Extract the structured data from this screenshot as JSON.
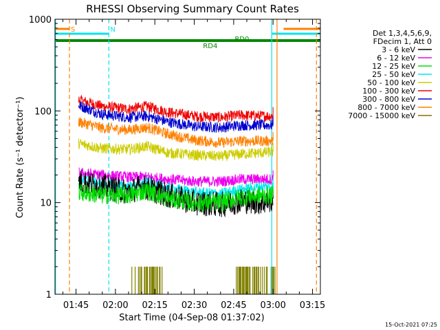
{
  "chart_data": {
    "type": "line",
    "title": "RHESSI Observing Summary Count Rates",
    "xlabel": "Start Time (04-Sep-08 01:37:02)",
    "ylabel": "Count Rate (s⁻¹ detector⁻¹)",
    "y_scale": "log",
    "ylim": [
      1,
      1000
    ],
    "xlim_minutes": [
      97,
      198
    ],
    "x_tick_labels": [
      "01:45",
      "02:00",
      "02:15",
      "02:30",
      "02:45",
      "03:00",
      "03:15"
    ],
    "x_tick_minutes": [
      105,
      120,
      135,
      150,
      165,
      180,
      195
    ],
    "y_tick_labels": [
      "1",
      "10",
      "100",
      "1000"
    ],
    "legend_header": [
      "Det 1,3,4,5,6,9,",
      "FDecim 1, Att 0"
    ],
    "legend_position": "right",
    "series": [
      {
        "name": "3 - 6 keV",
        "color": "#000000",
        "x": [
          106,
          115,
          125,
          130,
          140,
          150,
          160,
          168,
          176,
          180
        ],
        "y": [
          17,
          15,
          13,
          15,
          12,
          10,
          9.5,
          10.5,
          10,
          11
        ]
      },
      {
        "name": "6 - 12 keV",
        "color": "#ee00ee",
        "x": [
          106,
          115,
          125,
          132,
          140,
          150,
          160,
          168,
          176,
          180
        ],
        "y": [
          21,
          20,
          19,
          19,
          18,
          17,
          17,
          18,
          18,
          18
        ]
      },
      {
        "name": "12 - 25 keV",
        "color": "#00dd00",
        "x": [
          106,
          115,
          125,
          132,
          140,
          150,
          160,
          168,
          176,
          180
        ],
        "y": [
          13,
          12,
          12,
          13.5,
          11,
          10,
          10,
          11.5,
          12,
          12
        ]
      },
      {
        "name": "25 - 50 keV",
        "color": "#00e5ee",
        "x": [
          106,
          115,
          125,
          132,
          140,
          150,
          160,
          168,
          176,
          180
        ],
        "y": [
          18,
          16,
          15,
          16.5,
          14.5,
          13,
          12.5,
          14,
          15,
          15
        ]
      },
      {
        "name": "50 - 100 keV",
        "color": "#cccc00",
        "x": [
          106,
          115,
          125,
          132,
          140,
          150,
          160,
          168,
          176,
          180
        ],
        "y": [
          44,
          39,
          38,
          41,
          35,
          33,
          32,
          34,
          35,
          36
        ]
      },
      {
        "name": "100 - 300 keV",
        "color": "#ee0000",
        "x": [
          106,
          115,
          125,
          132,
          140,
          150,
          160,
          168,
          176,
          180
        ],
        "y": [
          132,
          112,
          105,
          112,
          97,
          88,
          85,
          90,
          88,
          88
        ]
      },
      {
        "name": "300 - 800 keV",
        "color": "#0000cc",
        "x": [
          106,
          115,
          125,
          132,
          140,
          150,
          160,
          168,
          176,
          180
        ],
        "y": [
          115,
          92,
          85,
          88,
          76,
          68,
          66,
          70,
          70,
          70
        ]
      },
      {
        "name": "800 - 7000 keV",
        "color": "#ff8000",
        "x": [
          106,
          115,
          125,
          132,
          140,
          150,
          160,
          168,
          176,
          180
        ],
        "y": [
          76,
          65,
          62,
          66,
          56,
          48,
          45,
          47,
          47,
          47
        ]
      },
      {
        "name": "7000 - 15000 keV",
        "color": "#8b6d00",
        "x": [],
        "y": []
      }
    ],
    "annotations": [
      {
        "text": "S",
        "color": "#ff8000",
        "x_minutes": 102.5
      },
      {
        "text": "N",
        "color": "#00e5ee",
        "x_minutes": 117.5
      },
      {
        "text": "RD0",
        "color": "#008800",
        "x_minutes": 168
      },
      {
        "text": "RD4",
        "color": "#008800",
        "x_minutes": 157
      }
    ],
    "flag_bars": [
      {
        "color": "#ff8000",
        "level": "top",
        "x_start": 97,
        "x_end": 102.5
      },
      {
        "color": "#00e5ee",
        "level": "upper",
        "x_start": 97,
        "x_end": 117.5
      },
      {
        "color": "#00e5ee",
        "level": "upper",
        "x_start": 179.5,
        "x_end": 198
      },
      {
        "color": "#ff8000",
        "level": "top",
        "x_start": 184,
        "x_end": 198
      },
      {
        "color": "#008800",
        "level": "lower",
        "x_start": 97,
        "x_end": 198
      }
    ],
    "vertical_markers": [
      {
        "color": "#ff8000",
        "style": "dashed",
        "x_minutes": 102.5
      },
      {
        "color": "#00e5ee",
        "style": "dashed",
        "x_minutes": 117.5
      },
      {
        "color": "#00e5ee",
        "style": "solid",
        "x_minutes": 97.2
      },
      {
        "color": "#00e5ee",
        "style": "solid",
        "x_minutes": 179.5
      },
      {
        "color": "#ff8000",
        "style": "solid",
        "x_minutes": 181.5
      },
      {
        "color": "#ff8000",
        "style": "dashed",
        "x_minutes": 196.5
      }
    ],
    "flare_flag_ranges": [
      {
        "color": "#808000",
        "x_start": 126,
        "x_end": 138
      },
      {
        "color": "#808000",
        "x_start": 166,
        "x_end": 181
      }
    ],
    "footer_date": "15-Oct-2021 07:25"
  }
}
